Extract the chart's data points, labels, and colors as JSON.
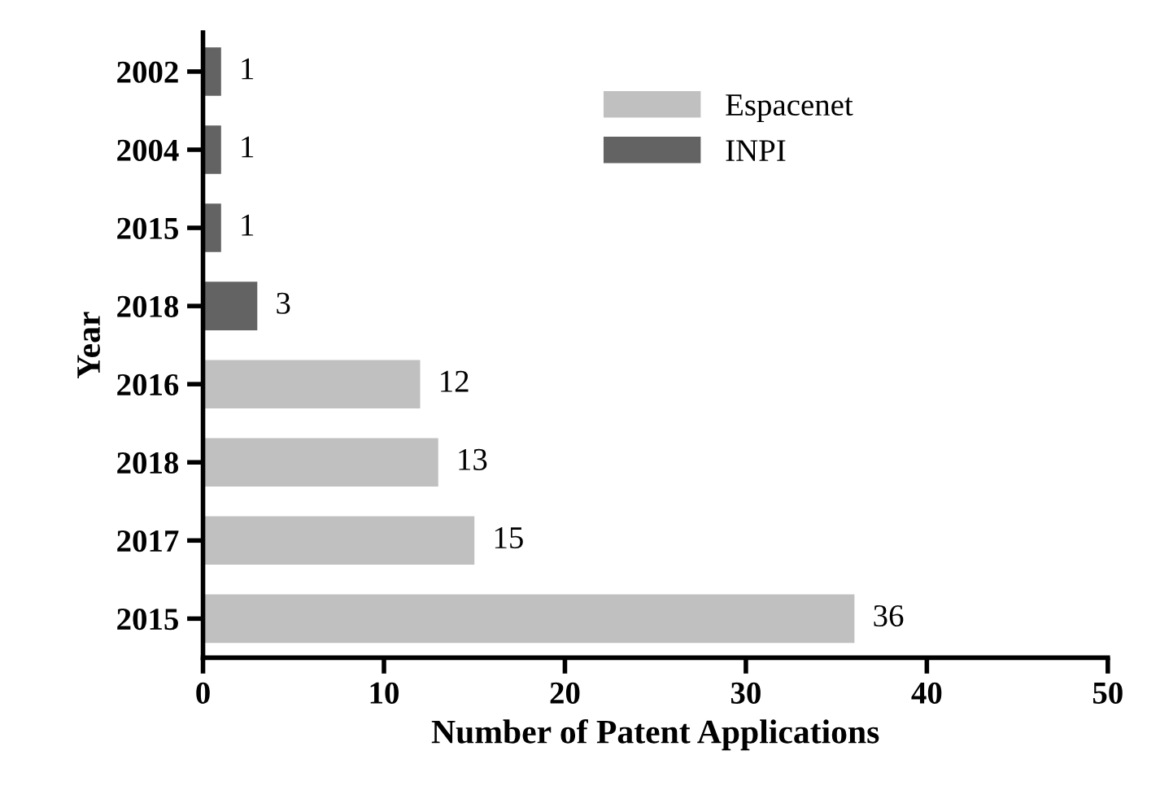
{
  "chart_data": {
    "type": "bar",
    "orientation": "horizontal",
    "xlabel": "Number of Patent Applications",
    "ylabel": "Year",
    "categories": [
      "2002",
      "2004",
      "2015",
      "2018",
      "2016",
      "2018",
      "2017",
      "2015"
    ],
    "series": [
      {
        "name": "Espacenet",
        "color": "#c0c0c0",
        "values": [
          null,
          null,
          null,
          null,
          12,
          13,
          15,
          36
        ]
      },
      {
        "name": "INPI",
        "color": "#636363",
        "values": [
          1,
          1,
          1,
          3,
          null,
          null,
          null,
          null
        ]
      }
    ],
    "xlim": [
      0,
      50
    ],
    "xticks": [
      0,
      10,
      20,
      30,
      40,
      50
    ],
    "data_labels": true,
    "legend": "top right",
    "grid": false
  }
}
